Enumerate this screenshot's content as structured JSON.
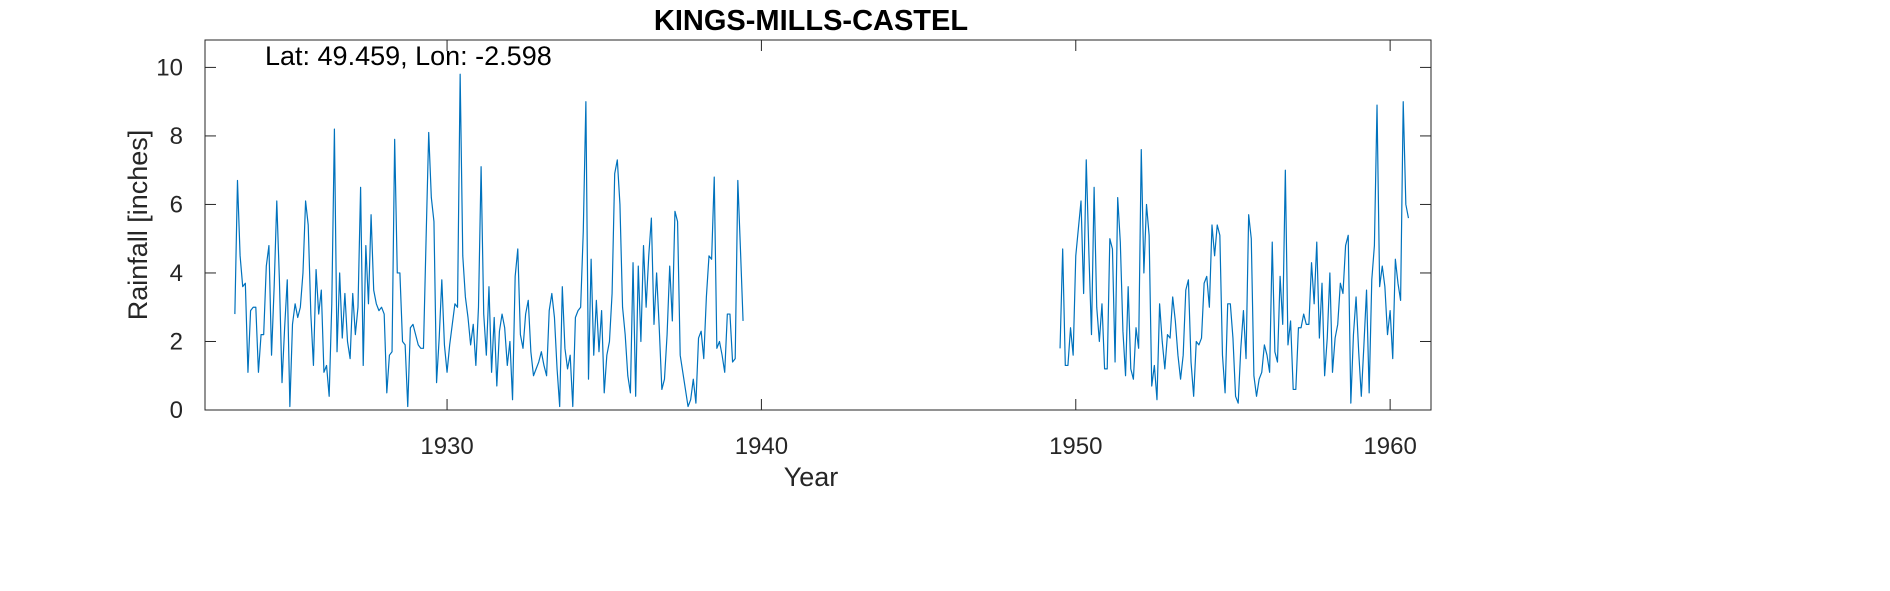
{
  "chart_data": {
    "type": "line",
    "title": "KINGS-MILLS-CASTEL",
    "xlabel": "Year",
    "ylabel": "Rainfall [inches]",
    "annotation": "Lat: 49.459, Lon: -2.598",
    "xlim": [
      1922.3,
      1961.3
    ],
    "ylim": [
      0,
      10.8
    ],
    "xticks": [
      1930,
      1940,
      1950,
      1960
    ],
    "yticks": [
      0,
      2,
      4,
      6,
      8,
      10
    ],
    "grid": false,
    "line_color": "#0072BD",
    "series": [
      {
        "start_year": 1923.25,
        "step": 0.08333,
        "values": [
          2.8,
          6.7,
          4.5,
          3.6,
          3.7,
          1.1,
          2.9,
          3.0,
          3.0,
          1.1,
          2.2,
          2.2,
          4.2,
          4.8,
          1.6,
          3.6,
          6.1,
          3.8,
          0.8,
          2.4,
          3.8,
          0.1,
          2.5,
          3.1,
          2.7,
          3.0,
          4.0,
          6.1,
          5.4,
          2.8,
          1.3,
          4.1,
          2.8,
          3.5,
          1.1,
          1.3,
          0.4,
          3.1,
          8.2,
          1.7,
          4.0,
          2.1,
          3.4,
          2.0,
          1.5,
          3.4,
          2.2,
          3.0,
          6.5,
          1.3,
          4.8,
          3.1,
          5.7,
          3.5,
          3.1,
          2.9,
          3.0,
          2.8,
          0.5,
          1.6,
          1.7,
          7.9,
          4.0,
          4.0,
          2.0,
          1.9,
          0.1,
          2.4,
          2.5,
          2.2,
          1.9,
          1.8,
          1.8,
          5.0,
          8.1,
          6.2,
          5.5,
          0.8,
          2.1,
          3.8,
          1.9,
          1.1,
          1.9,
          2.5,
          3.1,
          3.0,
          9.8,
          4.5,
          3.3,
          2.7,
          1.9,
          2.5,
          1.3,
          3.0,
          7.1,
          2.8,
          1.6,
          3.6,
          1.1,
          2.7,
          0.7,
          2.3,
          2.8,
          2.4,
          1.3,
          2.0,
          0.3,
          3.9,
          4.7,
          2.2,
          1.8,
          2.8,
          3.2,
          1.7,
          1.0,
          1.2,
          1.4,
          1.7,
          1.3,
          1.0,
          2.9,
          3.4,
          2.7,
          1.2,
          0.1,
          3.6,
          1.8,
          1.2,
          1.6,
          0.1,
          2.7,
          2.9,
          3.0,
          5.2,
          9.0,
          0.9,
          4.4,
          1.6,
          3.2,
          1.7,
          2.9,
          0.5,
          1.6,
          2.0,
          3.4,
          6.9,
          7.3,
          6.0,
          3.0,
          2.2,
          1.0,
          0.5,
          4.3,
          0.4,
          4.2,
          2.0,
          4.8,
          3.0,
          4.5,
          5.6,
          2.5,
          4.0,
          2.4,
          0.6,
          0.9,
          2.2,
          4.2,
          2.6,
          5.8,
          5.5,
          1.6,
          1.1,
          0.6,
          0.1,
          0.3,
          0.9,
          0.2,
          2.1,
          2.3,
          1.5,
          3.3,
          4.5,
          4.4,
          6.8,
          1.8,
          2.0,
          1.6,
          1.1,
          2.8,
          2.8,
          1.4,
          1.5,
          6.7,
          4.7,
          2.6
        ]
      },
      {
        "start_year": 1949.5,
        "step": 0.08333,
        "values": [
          1.8,
          4.7,
          1.3,
          1.3,
          2.4,
          1.6,
          4.5,
          5.3,
          6.1,
          3.4,
          7.3,
          4.6,
          2.2,
          6.5,
          3.0,
          2.0,
          3.1,
          1.2,
          1.2,
          5.0,
          4.7,
          1.4,
          6.2,
          4.9,
          2.3,
          1.0,
          3.6,
          1.2,
          0.9,
          2.4,
          1.8,
          7.6,
          4.0,
          6.0,
          5.1,
          0.7,
          1.3,
          0.3,
          3.1,
          2.0,
          1.2,
          2.2,
          2.1,
          3.3,
          2.6,
          1.6,
          0.9,
          1.6,
          3.5,
          3.8,
          1.4,
          0.4,
          2.0,
          1.9,
          2.1,
          3.7,
          3.9,
          3.0,
          5.4,
          4.5,
          5.4,
          5.1,
          1.6,
          0.5,
          3.1,
          3.1,
          2.1,
          0.4,
          0.2,
          1.8,
          2.9,
          1.5,
          5.7,
          5.0,
          1.0,
          0.4,
          0.9,
          1.1,
          1.9,
          1.6,
          1.1,
          4.9,
          1.7,
          1.4,
          3.9,
          2.5,
          7.0,
          1.9,
          2.6,
          0.6,
          0.6,
          2.4,
          2.4,
          2.8,
          2.5,
          2.5,
          4.3,
          3.1,
          4.9,
          2.1,
          3.7,
          1.0,
          2.1,
          4.0,
          1.1,
          2.1,
          2.5,
          3.7,
          3.4,
          4.8,
          5.1,
          0.2,
          2.2,
          3.3,
          1.7,
          0.4,
          1.9,
          3.5,
          0.5,
          3.8,
          4.8,
          8.9,
          3.6,
          4.2,
          3.6,
          2.2,
          2.9,
          1.5,
          4.4,
          3.7,
          3.2,
          9.0,
          6.0,
          5.6
        ]
      }
    ]
  }
}
